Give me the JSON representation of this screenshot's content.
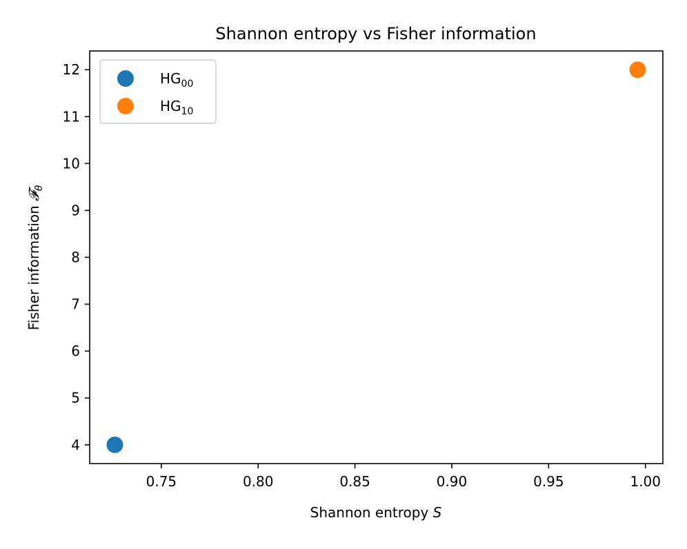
{
  "chart_data": {
    "type": "scatter",
    "title": "Shannon entropy vs Fisher information",
    "xlabel": {
      "text": "Shannon entropy ",
      "symbol": "S"
    },
    "ylabel": {
      "text": "Fisher information ",
      "symbol": "𝓕",
      "subscript": "θ"
    },
    "xlim": [
      0.713,
      1.009
    ],
    "ylim": [
      3.6,
      12.4
    ],
    "x_ticks": [
      0.75,
      0.8,
      0.85,
      0.9,
      0.95,
      1.0
    ],
    "x_tick_labels": [
      "0.75",
      "0.80",
      "0.85",
      "0.90",
      "0.95",
      "1.00"
    ],
    "y_ticks": [
      4,
      5,
      6,
      7,
      8,
      9,
      10,
      11,
      12
    ],
    "y_tick_labels": [
      "4",
      "5",
      "6",
      "7",
      "8",
      "9",
      "10",
      "11",
      "12"
    ],
    "grid": false,
    "legend": "top-left",
    "series": [
      {
        "name": "HG",
        "subscript": "00",
        "color": "#1f77b4",
        "points": [
          {
            "x": 0.726,
            "y": 4
          }
        ]
      },
      {
        "name": "HG",
        "subscript": "10",
        "color": "#ff7f0e",
        "points": [
          {
            "x": 0.996,
            "y": 12
          }
        ]
      }
    ]
  }
}
